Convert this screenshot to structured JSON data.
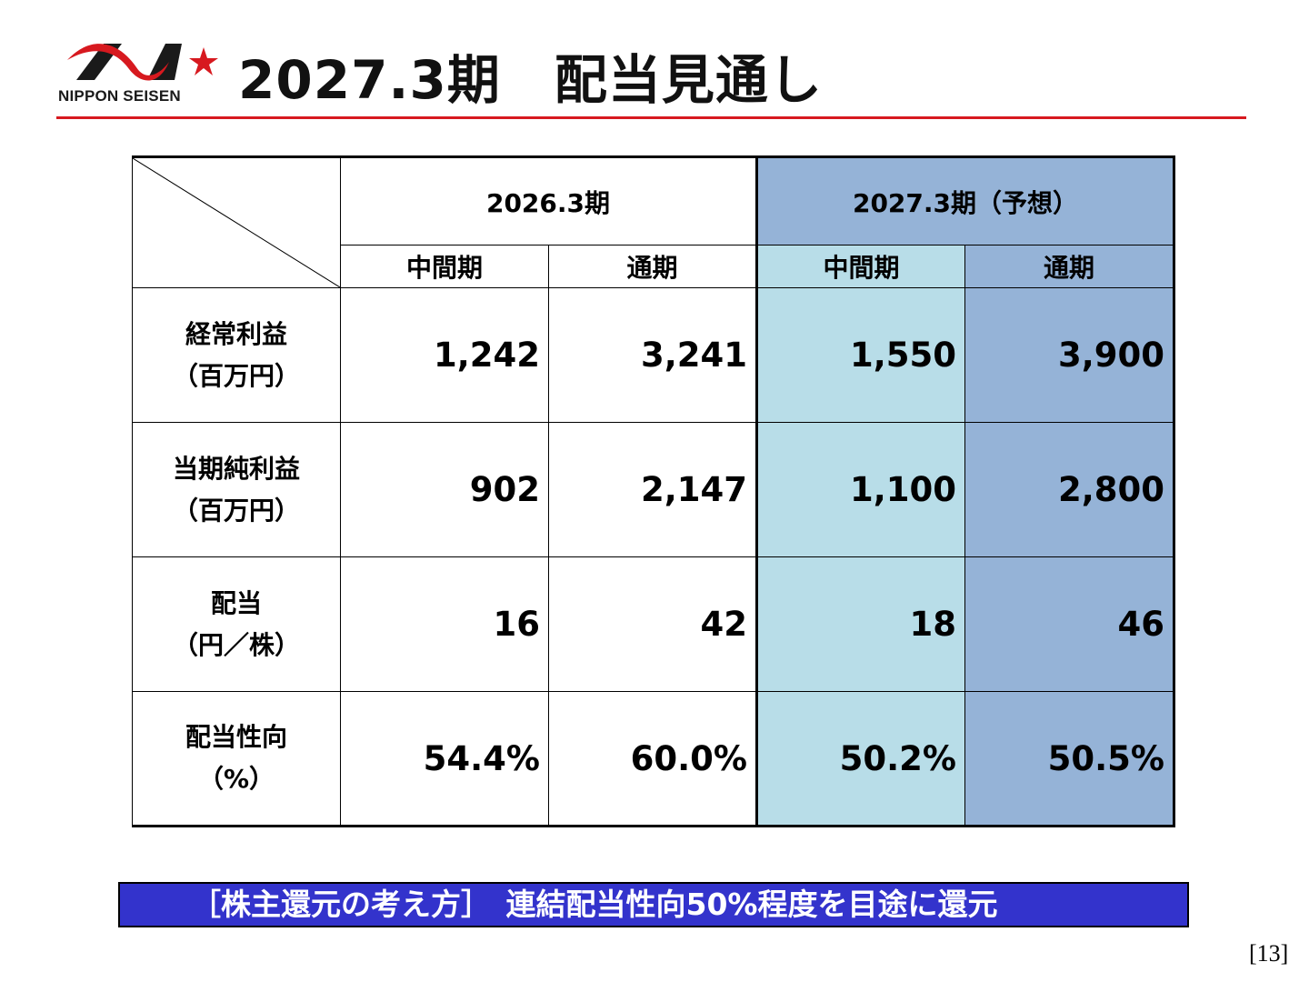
{
  "logo": {
    "text": "NIPPON SEISEN",
    "colors": {
      "mark": "#1a1a1a",
      "swoosh": "#d7191f",
      "star": "#d7191f"
    }
  },
  "title": "2027.3期　配当見通し",
  "colors": {
    "accent_rule": "#d7191f",
    "forecast_light": "#b8dde8",
    "forecast_blue": "#95b3d7",
    "banner_bg": "#3333cc"
  },
  "table": {
    "period_headers": [
      "2026.3期",
      "2027.3期（予想）"
    ],
    "sub_headers": [
      "中間期",
      "通期",
      "中間期",
      "通期"
    ],
    "rows": [
      {
        "label_line1": "経常利益",
        "label_line2": "（百万円）",
        "values": [
          "1,242",
          "3,241",
          "1,550",
          "3,900"
        ]
      },
      {
        "label_line1": "当期純利益",
        "label_line2": "（百万円）",
        "values": [
          "902",
          "2,147",
          "1,100",
          "2,800"
        ]
      },
      {
        "label_line1": "配当",
        "label_line2": "（円／株）",
        "values": [
          "16",
          "42",
          "18",
          "46"
        ]
      },
      {
        "label_line1": "配当性向",
        "label_line2": "（%）",
        "values": [
          "54.4%",
          "60.0%",
          "50.2%",
          "50.5%"
        ]
      }
    ]
  },
  "banner": "［株主還元の考え方］　連結配当性向50%程度を目途に還元",
  "page_number": "[13]"
}
